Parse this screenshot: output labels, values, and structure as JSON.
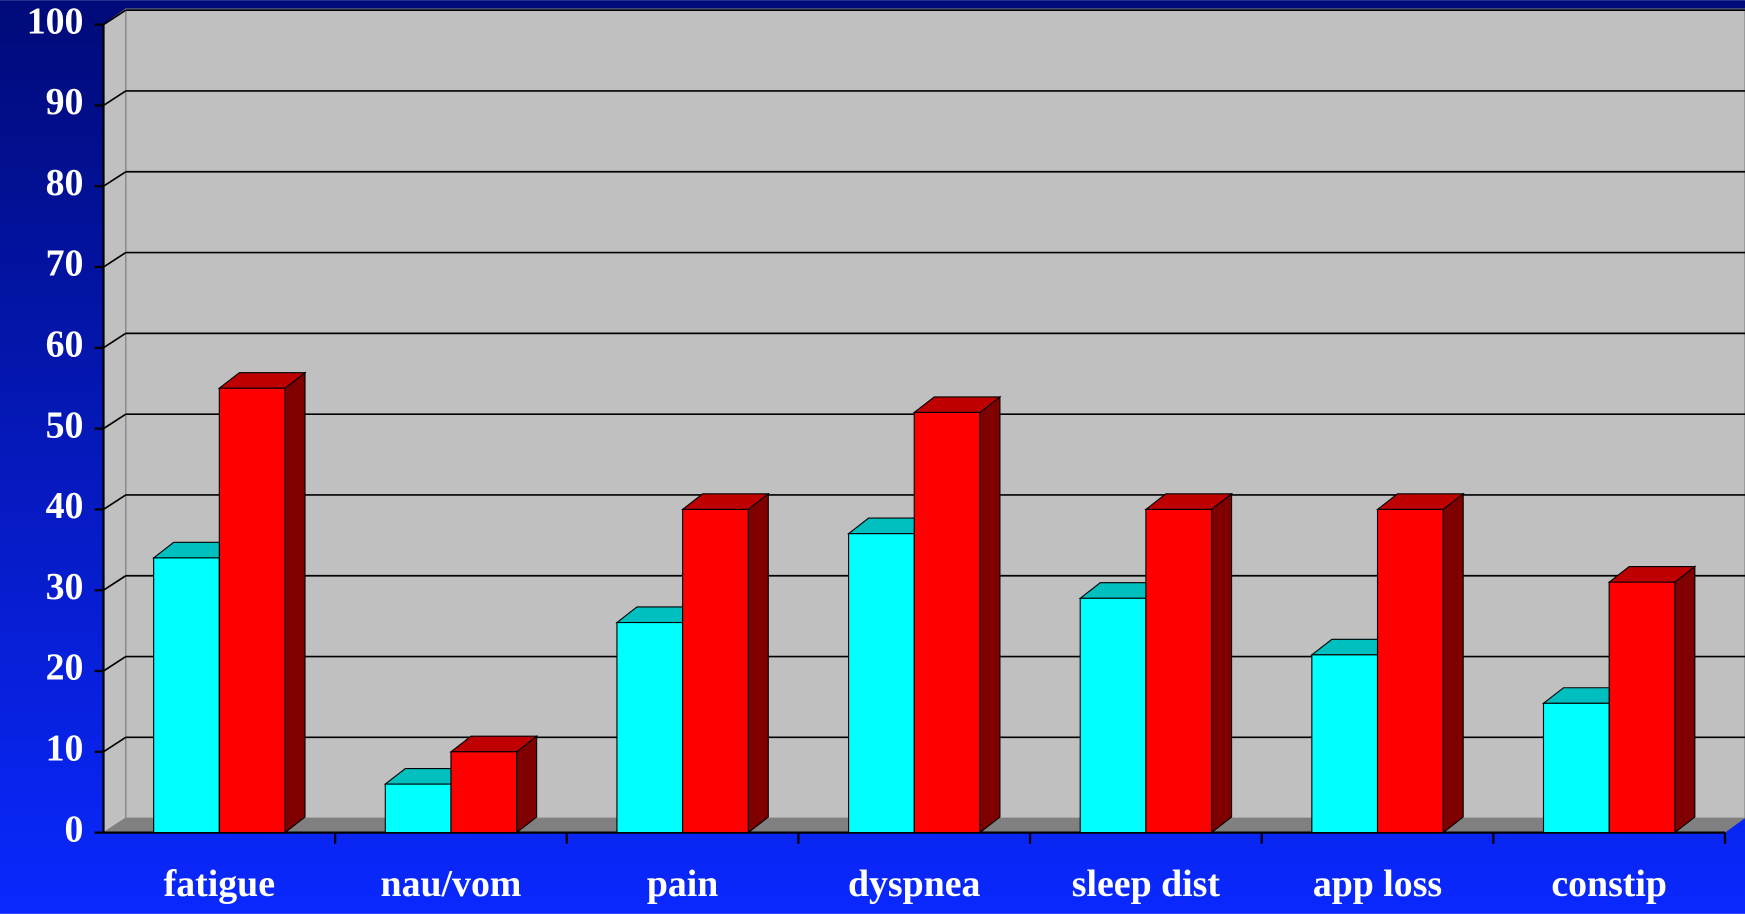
{
  "chart_data": {
    "type": "bar",
    "categories": [
      "fatigue",
      "nau/vom",
      "pain",
      "dyspnea",
      "sleep dist",
      "app loss",
      "constip"
    ],
    "series": [
      {
        "color": "#00ffff",
        "values": [
          34,
          6,
          26,
          37,
          29,
          22,
          16
        ]
      },
      {
        "color": "#ff0000",
        "values": [
          55,
          10,
          40,
          52,
          40,
          40,
          31
        ]
      }
    ],
    "ylim": [
      0,
      100
    ],
    "yticks": [
      0,
      10,
      20,
      30,
      40,
      50,
      60,
      70,
      80,
      90,
      100
    ],
    "grid": true
  }
}
